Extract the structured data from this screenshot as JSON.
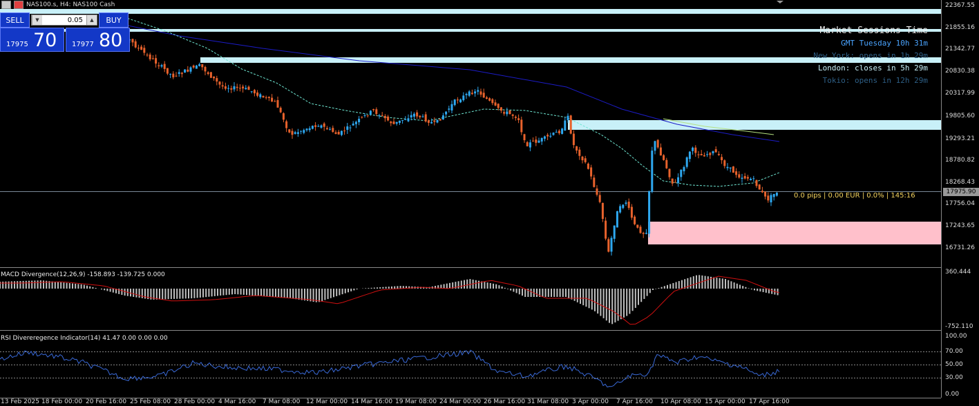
{
  "header": {
    "symbol_title": "NAS100.s, H4:  NAS100 Cash"
  },
  "trade_panel": {
    "sell_label": "SELL",
    "buy_label": "BUY",
    "lot_value": "0.05",
    "sell_small": "17975",
    "sell_big": "70",
    "buy_small": "17977",
    "buy_big": "80"
  },
  "sessions": {
    "title": "Market Sessions Time",
    "gmt": "GMT Tuesday 10h 31m",
    "newyork": "New York: opens in 1h 29m",
    "london": "London: closes in 5h 29m",
    "tokio": "Tokio: opens in 12h 29m"
  },
  "price_axis": [
    "22367.55",
    "21855.16",
    "21342.77",
    "20830.38",
    "20317.99",
    "19805.60",
    "19293.21",
    "18780.82",
    "18268.43",
    "17756.04",
    "17243.65",
    "16731.26"
  ],
  "current_price": "17975.90",
  "pips_info": "0.0 pips | 0.00 EUR | 0.0% | 145:16",
  "macd": {
    "label": "MACD Divergence(12,26,9) -158.893 -139.725 0.000",
    "axis_top": "360.444",
    "axis_bottom": "-752.110"
  },
  "rsi": {
    "label": "RSI Divereregence Indicator(14) 41.47 0.00 0.00 0.00",
    "axis": [
      "100.00",
      "70.00",
      "50.00",
      "30.00",
      "0.00"
    ]
  },
  "time_axis": [
    "13 Feb 2025",
    "18 Feb 00:00",
    "20 Feb 16:00",
    "25 Feb 08:00",
    "28 Feb 00:00",
    "4 Mar 16:00",
    "7 Mar 08:00",
    "12 Mar 00:00",
    "14 Mar 16:00",
    "19 Mar 08:00",
    "24 Mar 00:00",
    "26 Mar 16:00",
    "31 Mar 08:00",
    "3 Apr 00:00",
    "7 Apr 16:00",
    "10 Apr 08:00",
    "15 Apr 00:00",
    "17 Apr 16:00"
  ],
  "colors": {
    "bull": "#2ea8f0",
    "bear": "#e8622c",
    "zone_supply": "#c8f0f8",
    "zone_demand": "#ffc0cb",
    "macd_signal": "#d01010",
    "rsi_line": "#3a6ad8"
  },
  "icons": [
    "chart-menu-icon",
    "dropdown-arrow-icon",
    "spin-up-icon"
  ]
}
